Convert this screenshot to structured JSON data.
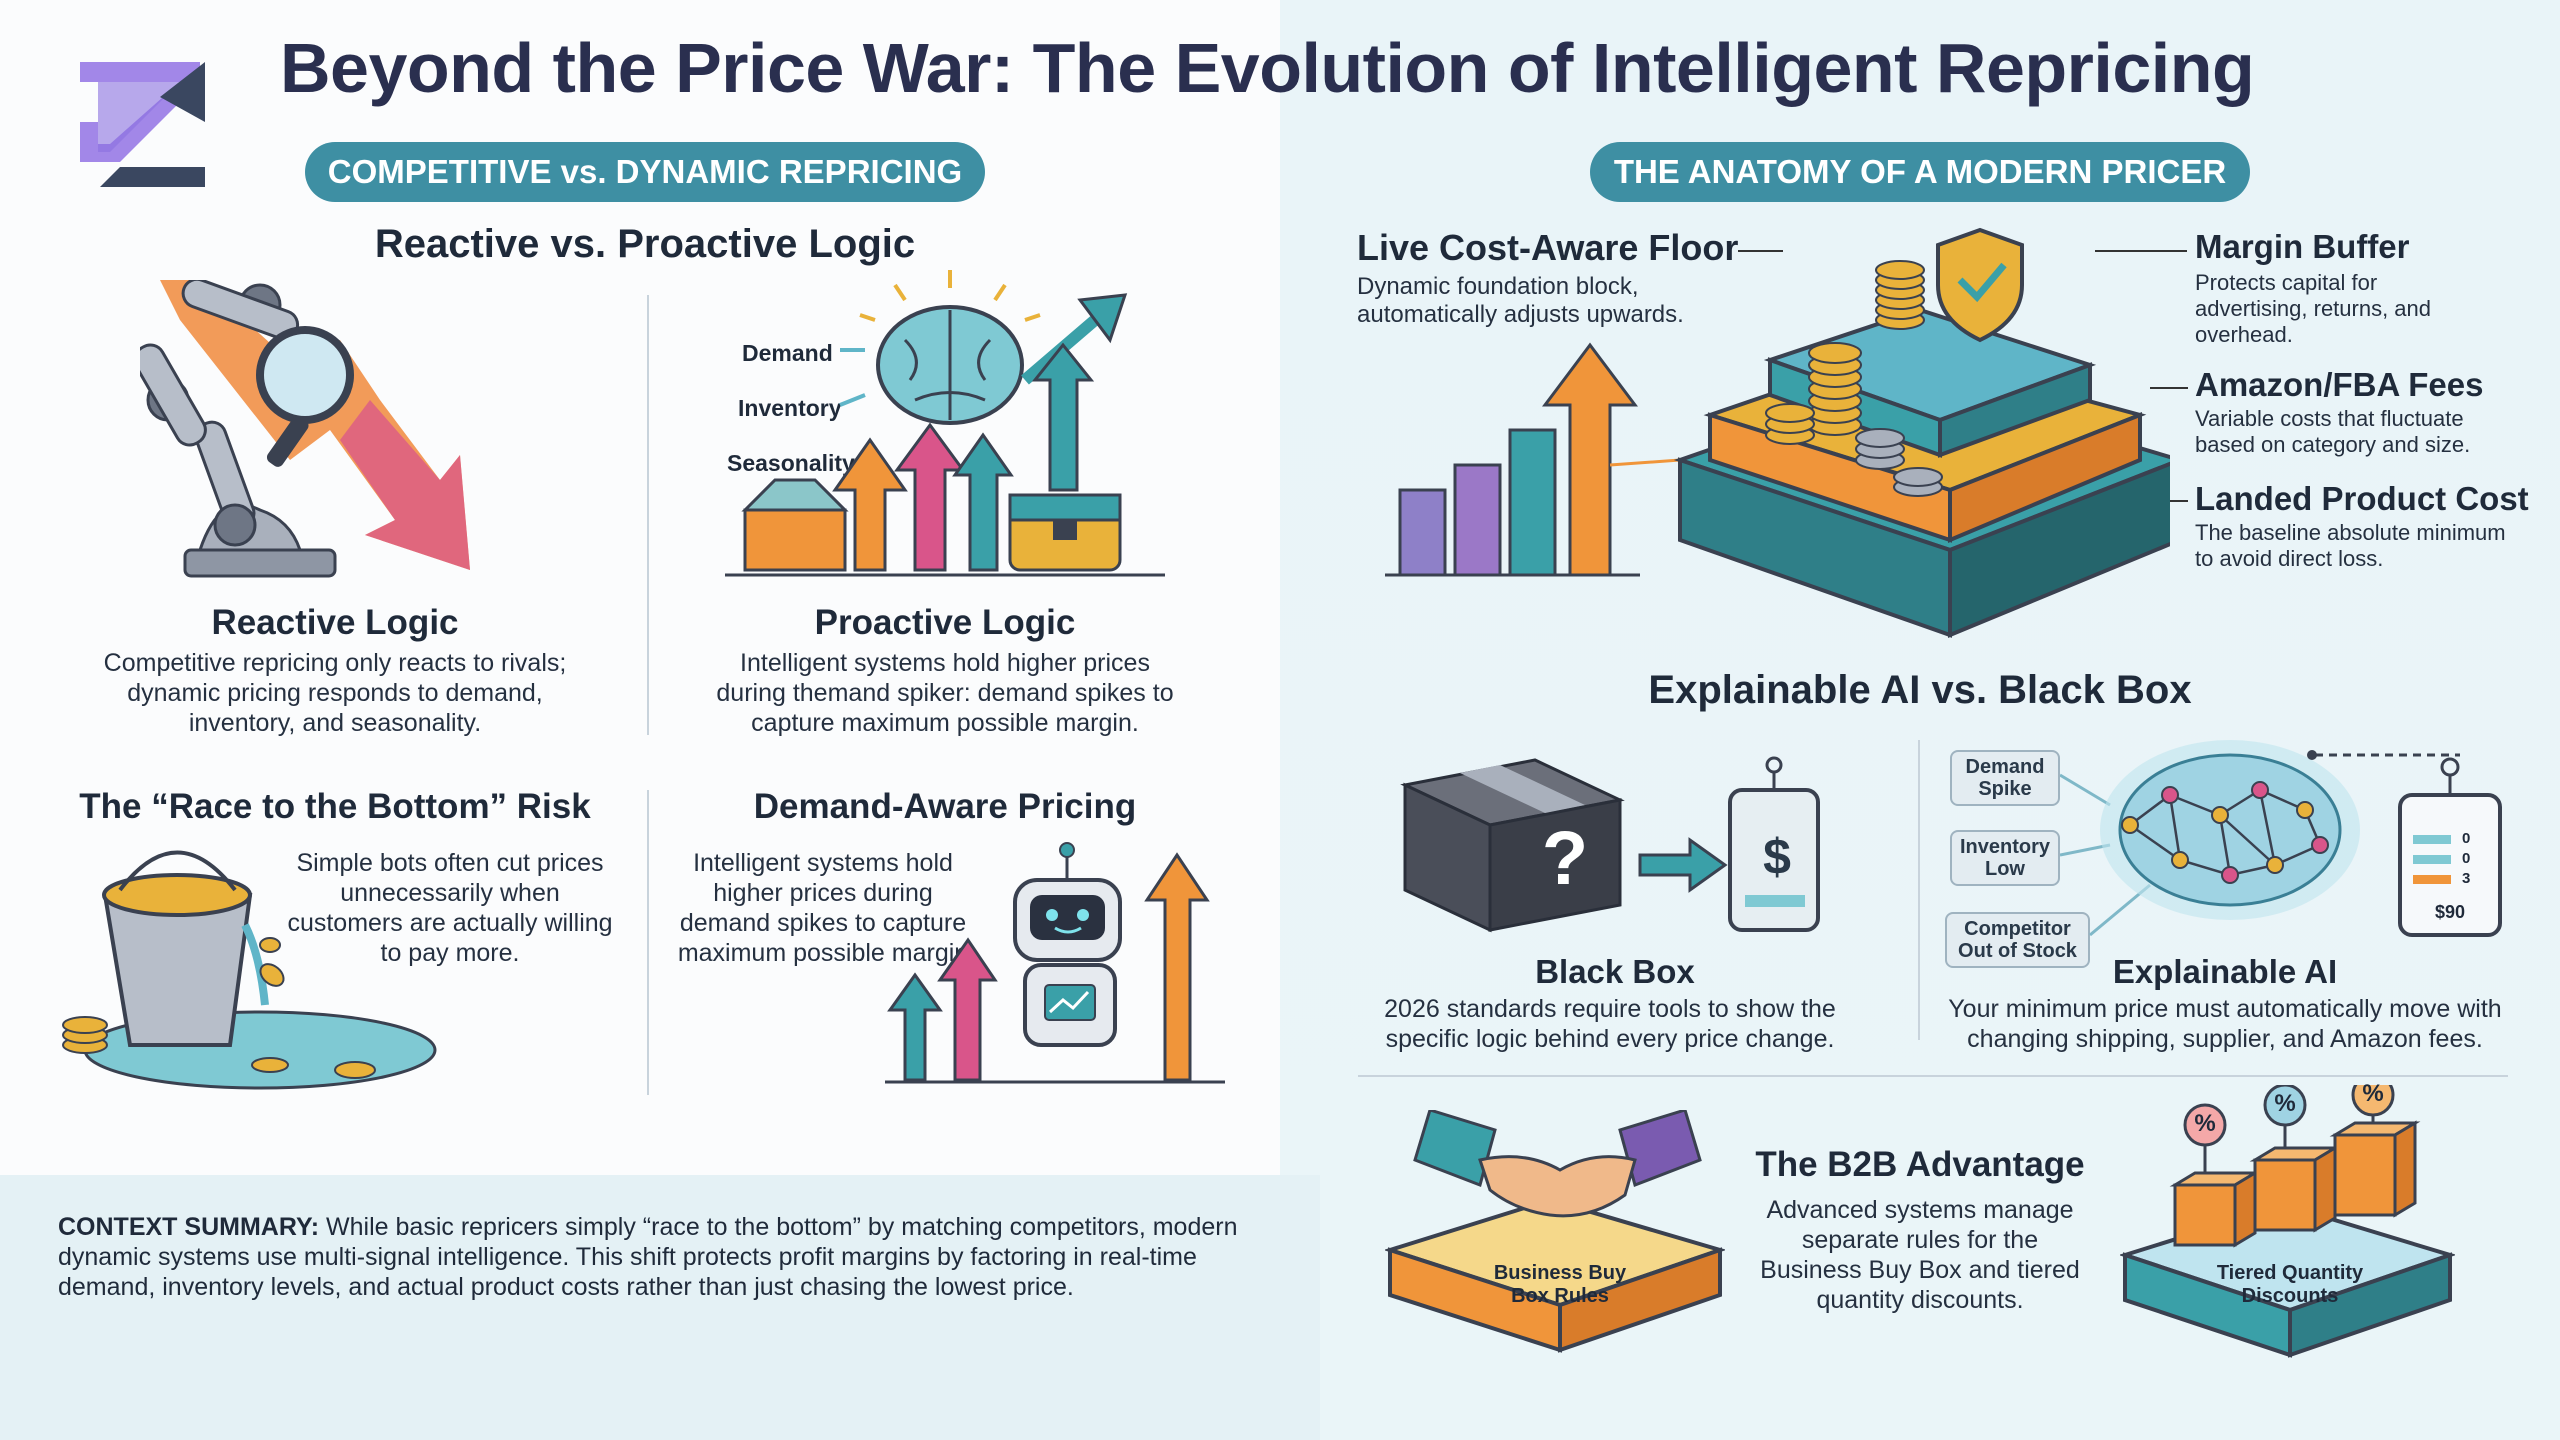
{
  "title": "Beyond the Price War: The Evolution of Intelligent Repricing",
  "left": {
    "pill": "COMPETITIVE vs. DYNAMIC REPRICING",
    "section_title": "Reactive vs. Proactive Logic",
    "reactive": {
      "title": "Reactive Logic",
      "text": "Competitive repricing only reacts to rivals; dynamic pricing responds to demand, inventory, and seasonality."
    },
    "proactive": {
      "title": "Proactive Logic",
      "signals": [
        "Demand",
        "Inventory",
        "Seasonality"
      ],
      "text": "Intelligent systems hold higher prices during themand spiker: demand spikes to capture maximum possible margin."
    },
    "race": {
      "title": "The “Race to the Bottom” Risk",
      "text": "Simple bots often cut prices unnecessarily when customers are actually willing to pay more."
    },
    "demand_aware": {
      "title": "Demand-Aware Pricing",
      "text": "Intelligent systems hold higher prices during demand spikes to capture maximum possible margin"
    },
    "summary_label": "CONTEXT SUMMARY:",
    "summary_text": " While basic repricers simply “race to the bottom” by matching competitors, modern dynamic systems use multi-signal intelligence. This shift protects profit margins by factoring in real-time demand, inventory levels, and actual product costs rather than just chasing the lowest price."
  },
  "right": {
    "pill": "THE ANATOMY OF A MODERN PRICER",
    "floor": {
      "title": "Live Cost-Aware Floor",
      "text": "Dynamic foundation block, automatically adjusts upwards."
    },
    "margin": {
      "title": "Margin Buffer",
      "text": "Protects capital for advertising, returns, and overhead."
    },
    "fees": {
      "title": "Amazon/FBA Fees",
      "text": "Variable costs that fluctuate based on category and size."
    },
    "landed": {
      "title": "Landed Product Cost",
      "text": "The baseline absolute minimum to avoid direct loss."
    },
    "xai_title": "Explainable AI vs. Black Box",
    "black_box": {
      "title": "Black Box",
      "text": "2026 standards require tools to show the specific logic behind every price change.",
      "question": "?",
      "tag_symbol": "$"
    },
    "explainable": {
      "title": "Explainable AI",
      "text": "Your minimum price must automatically move with changing shipping, supplier, and Amazon fees.",
      "inputs": [
        "Demand Spike",
        "Inventory Low",
        "Competitor Out of Stock"
      ],
      "tag_rows": [
        "0",
        "0",
        "3"
      ],
      "tag_price": "$90"
    },
    "b2b": {
      "title": "The B2B Advantage",
      "text": "Advanced systems manage separate rules for the Business Buy Box and tiered quantity discounts.",
      "left_label": "Business Buy Box Rules",
      "right_label": "Tiered Quantity Discounts",
      "percent": "%"
    }
  },
  "colors": {
    "title": "#2a2f4f",
    "pill": "#3e8fa3",
    "teal": "#3aa0a8",
    "orange": "#f0953a",
    "purple": "#7a5bb0",
    "gold": "#e9b23a",
    "dark": "#3a4150"
  }
}
